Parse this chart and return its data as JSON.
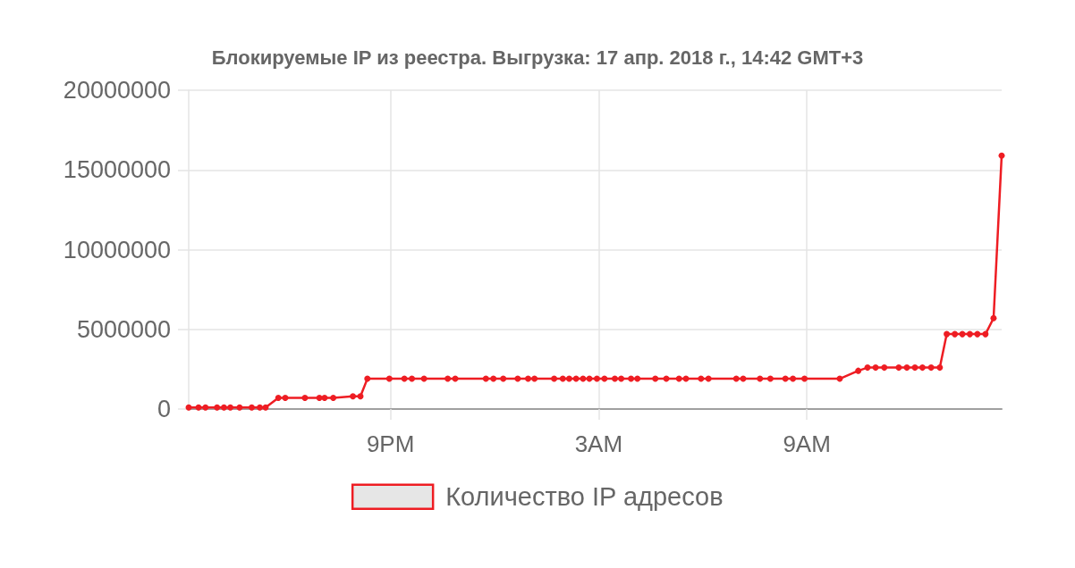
{
  "chart_data": {
    "type": "line",
    "title": "Блокируемые IP из реестра. Выгрузка: 17 апр. 2018 г., 14:42 GMT+3",
    "x": [
      "2018-04-16T15:11",
      "2018-04-16T15:28",
      "2018-04-16T15:40",
      "2018-04-16T16:00",
      "2018-04-16T16:12",
      "2018-04-16T16:23",
      "2018-04-16T16:39",
      "2018-04-16T17:00",
      "2018-04-16T17:14",
      "2018-04-16T17:24",
      "2018-04-16T17:46",
      "2018-04-16T17:58",
      "2018-04-16T18:32",
      "2018-04-16T18:57",
      "2018-04-16T19:06",
      "2018-04-16T19:21",
      "2018-04-16T19:55",
      "2018-04-16T20:08",
      "2018-04-16T20:20",
      "2018-04-16T20:58",
      "2018-04-16T21:24",
      "2018-04-16T21:37",
      "2018-04-16T21:58",
      "2018-04-16T22:39",
      "2018-04-16T22:52",
      "2018-04-16T23:45",
      "2018-04-16T23:58",
      "2018-04-17T00:15",
      "2018-04-17T00:40",
      "2018-04-17T00:58",
      "2018-04-17T01:09",
      "2018-04-17T01:43",
      "2018-04-17T01:58",
      "2018-04-17T02:09",
      "2018-04-17T02:21",
      "2018-04-17T02:33",
      "2018-04-17T02:44",
      "2018-04-17T02:57",
      "2018-04-17T03:10",
      "2018-04-17T03:28",
      "2018-04-17T03:39",
      "2018-04-17T03:56",
      "2018-04-17T04:07",
      "2018-04-17T04:38",
      "2018-04-17T04:57",
      "2018-04-17T05:19",
      "2018-04-17T05:31",
      "2018-04-17T05:57",
      "2018-04-17T06:10",
      "2018-04-17T06:58",
      "2018-04-17T07:10",
      "2018-04-17T07:39",
      "2018-04-17T07:57",
      "2018-04-17T08:23",
      "2018-04-17T08:36",
      "2018-04-17T08:56",
      "2018-04-17T09:57",
      "2018-04-17T10:29",
      "2018-04-17T10:45",
      "2018-04-17T10:59",
      "2018-04-17T11:14",
      "2018-04-17T11:39",
      "2018-04-17T11:53",
      "2018-04-17T12:07",
      "2018-04-17T12:20",
      "2018-04-17T12:35",
      "2018-04-17T12:50",
      "2018-04-17T13:02",
      "2018-04-17T13:16",
      "2018-04-17T13:29",
      "2018-04-17T13:42",
      "2018-04-17T13:55",
      "2018-04-17T14:09",
      "2018-04-17T14:23",
      "2018-04-17T14:37"
    ],
    "series": [
      {
        "name": "Количество IP адресов",
        "color": "#ee1d23",
        "values": [
          100000,
          100000,
          100000,
          100000,
          100000,
          100000,
          100000,
          100000,
          100000,
          100000,
          700000,
          700000,
          700000,
          700000,
          700000,
          700000,
          800000,
          800000,
          1900000,
          1900000,
          1900000,
          1900000,
          1900000,
          1900000,
          1900000,
          1900000,
          1900000,
          1900000,
          1900000,
          1900000,
          1900000,
          1900000,
          1900000,
          1900000,
          1900000,
          1900000,
          1900000,
          1900000,
          1900000,
          1900000,
          1900000,
          1900000,
          1900000,
          1900000,
          1900000,
          1900000,
          1900000,
          1900000,
          1900000,
          1900000,
          1900000,
          1900000,
          1900000,
          1900000,
          1900000,
          1900000,
          1900000,
          2400000,
          2600000,
          2600000,
          2600000,
          2600000,
          2600000,
          2600000,
          2600000,
          2600000,
          2600000,
          4700000,
          4700000,
          4700000,
          4700000,
          4700000,
          4700000,
          5700000,
          15900000
        ]
      }
    ],
    "xlim": [
      "2018-04-16T15:11",
      "2018-04-17T14:37"
    ],
    "xticks": [
      {
        "value": "2018-04-16T21:00",
        "label": "9PM"
      },
      {
        "value": "2018-04-17T03:00",
        "label": "3AM"
      },
      {
        "value": "2018-04-17T09:00",
        "label": "9AM"
      }
    ],
    "ylim": [
      0,
      20000000
    ],
    "yticks": [
      0,
      5000000,
      10000000,
      15000000,
      20000000
    ],
    "grid": true,
    "legend": "bottom",
    "marker": "circle",
    "line_style": "solid"
  }
}
